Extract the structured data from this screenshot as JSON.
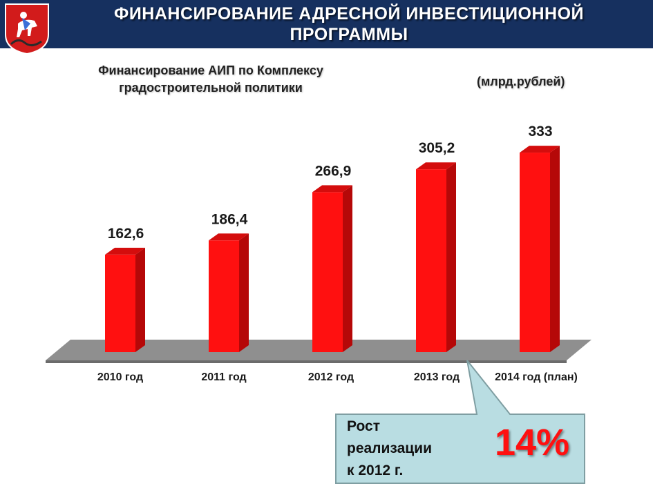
{
  "header": {
    "title": "ФИНАНСИРОВАНИЕ АДРЕСНОЙ ИНВЕСТИЦИОННОЙ ПРОГРАММЫ"
  },
  "logo": {
    "name": "moscow-coat-of-arms",
    "color": "#d21b1b"
  },
  "colors": {
    "header_bg": "#16305f",
    "bar_front": "#ff1010",
    "bar_side": "#b50808",
    "bar_top": "#d40d0d",
    "floor": "#8a8a8a",
    "callout_bg": "#b9dde2"
  },
  "chart_data": {
    "type": "bar",
    "title": "Финансирование АИП по Комплексу градостроительной политики",
    "unit": "(млрд.рублей)",
    "categories": [
      "2010 год",
      "2011 год",
      "2012 год",
      "2013 год",
      "2014 год (план)"
    ],
    "values": [
      162.6,
      186.4,
      266.9,
      305.2,
      333
    ],
    "value_labels": [
      "162,6",
      "186,4",
      "266,9",
      "305,2",
      "333"
    ],
    "ylim": [
      0,
      340
    ],
    "grid": false,
    "legend": "none"
  },
  "callout": {
    "lines": [
      "Рост",
      "реализации",
      "к 2012 г."
    ],
    "value": "14%"
  }
}
